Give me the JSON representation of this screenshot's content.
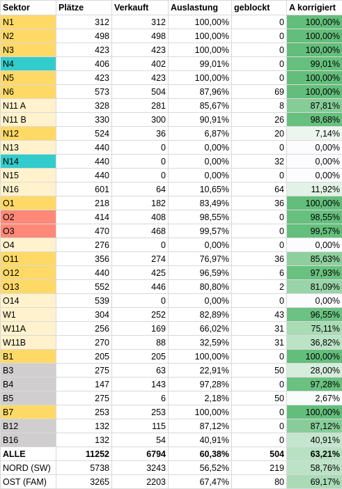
{
  "headers": [
    "Sektor",
    "Plätze",
    "Verkauft",
    "Auslastung",
    "geblockt",
    "A korrigiert"
  ],
  "rows": [
    {
      "name": "N1",
      "plaetze": "312",
      "verkauft": "312",
      "auslastung": "100,00%",
      "geblockt": "0",
      "korrigiert": "100,00%",
      "name_color": "#FFD966",
      "corr_color": "#63BE7B"
    },
    {
      "name": "N2",
      "plaetze": "498",
      "verkauft": "498",
      "auslastung": "100,00%",
      "geblockt": "0",
      "korrigiert": "100,00%",
      "name_color": "#FFD966",
      "corr_color": "#63BE7B"
    },
    {
      "name": "N3",
      "plaetze": "423",
      "verkauft": "423",
      "auslastung": "100,00%",
      "geblockt": "0",
      "korrigiert": "100,00%",
      "name_color": "#FFD966",
      "corr_color": "#63BE7B"
    },
    {
      "name": "N4",
      "plaetze": "406",
      "verkauft": "402",
      "auslastung": "99,01%",
      "geblockt": "0",
      "korrigiert": "99,01%",
      "name_color": "#33CCCC",
      "corr_color": "#66BF7D"
    },
    {
      "name": "N5",
      "plaetze": "423",
      "verkauft": "423",
      "auslastung": "100,00%",
      "geblockt": "0",
      "korrigiert": "100,00%",
      "name_color": "#FFD966",
      "corr_color": "#63BE7B"
    },
    {
      "name": "N6",
      "plaetze": "573",
      "verkauft": "504",
      "auslastung": "87,96%",
      "geblockt": "69",
      "korrigiert": "100,00%",
      "name_color": "#FFD966",
      "corr_color": "#63BE7B"
    },
    {
      "name": "N11 A",
      "plaetze": "328",
      "verkauft": "281",
      "auslastung": "85,67%",
      "geblockt": "8",
      "korrigiert": "87,81%",
      "name_color": "#FFF2CC",
      "corr_color": "#86CC97"
    },
    {
      "name": "N11 B",
      "plaetze": "330",
      "verkauft": "300",
      "auslastung": "90,91%",
      "geblockt": "26",
      "korrigiert": "98,68%",
      "name_color": "#FFF2CC",
      "corr_color": "#67C07E"
    },
    {
      "name": "N12",
      "plaetze": "524",
      "verkauft": "36",
      "auslastung": "6,87%",
      "geblockt": "20",
      "korrigiert": "7,14%",
      "name_color": "#FFD966",
      "corr_color": "#ECF6EF"
    },
    {
      "name": "N13",
      "plaetze": "440",
      "verkauft": "0",
      "auslastung": "0,00%",
      "geblockt": "0",
      "korrigiert": "0,00%",
      "name_color": "#FFF2CC",
      "corr_color": "#FCFCFF"
    },
    {
      "name": "N14",
      "plaetze": "440",
      "verkauft": "0",
      "auslastung": "0,00%",
      "geblockt": "32",
      "korrigiert": "0,00%",
      "name_color": "#33CCCC",
      "corr_color": "#FCFCFF"
    },
    {
      "name": "N15",
      "plaetze": "440",
      "verkauft": "0",
      "auslastung": "0,00%",
      "geblockt": "0",
      "korrigiert": "0,00%",
      "name_color": "#FFF2CC",
      "corr_color": "#FCFCFF"
    },
    {
      "name": "N16",
      "plaetze": "601",
      "verkauft": "64",
      "auslastung": "10,65%",
      "geblockt": "64",
      "korrigiert": "11,92%",
      "name_color": "#FFF2CC",
      "corr_color": "#E2F2E6"
    },
    {
      "name": "O1",
      "plaetze": "218",
      "verkauft": "182",
      "auslastung": "83,49%",
      "geblockt": "36",
      "korrigiert": "100,00%",
      "name_color": "#FFD966",
      "corr_color": "#63BE7B"
    },
    {
      "name": "O2",
      "plaetze": "414",
      "verkauft": "408",
      "auslastung": "98,55%",
      "geblockt": "0",
      "korrigiert": "98,55%",
      "name_color": "#FF8878",
      "corr_color": "#67C07E"
    },
    {
      "name": "O3",
      "plaetze": "470",
      "verkauft": "468",
      "auslastung": "99,57%",
      "geblockt": "0",
      "korrigiert": "99,57%",
      "name_color": "#FF8878",
      "corr_color": "#64BF7C"
    },
    {
      "name": "O4",
      "plaetze": "276",
      "verkauft": "0",
      "auslastung": "0,00%",
      "geblockt": "0",
      "korrigiert": "0,00%",
      "name_color": "#FFF2CC",
      "corr_color": "#FCFCFF"
    },
    {
      "name": "O11",
      "plaetze": "356",
      "verkauft": "274",
      "auslastung": "76,97%",
      "geblockt": "36",
      "korrigiert": "85,63%",
      "name_color": "#FFD966",
      "corr_color": "#8DCF9D"
    },
    {
      "name": "O12",
      "plaetze": "440",
      "verkauft": "425",
      "auslastung": "96,59%",
      "geblockt": "6",
      "korrigiert": "97,93%",
      "name_color": "#FFD966",
      "corr_color": "#69C17F"
    },
    {
      "name": "O13",
      "plaetze": "552",
      "verkauft": "446",
      "auslastung": "80,80%",
      "geblockt": "2",
      "korrigiert": "81,09%",
      "name_color": "#FFD966",
      "corr_color": "#98D4A7"
    },
    {
      "name": "O14",
      "plaetze": "539",
      "verkauft": "0",
      "auslastung": "0,00%",
      "geblockt": "0",
      "korrigiert": "0,00%",
      "name_color": "#FFF2CC",
      "corr_color": "#FCFCFF"
    },
    {
      "name": "W1",
      "plaetze": "304",
      "verkauft": "252",
      "auslastung": "82,89%",
      "geblockt": "43",
      "korrigiert": "96,55%",
      "name_color": "#FFF2CC",
      "corr_color": "#6CC282"
    },
    {
      "name": "W11A",
      "plaetze": "256",
      "verkauft": "169",
      "auslastung": "66,02%",
      "geblockt": "31",
      "korrigiert": "75,11%",
      "name_color": "#FFF2CC",
      "corr_color": "#A9DBB5"
    },
    {
      "name": "W11B",
      "plaetze": "270",
      "verkauft": "88",
      "auslastung": "32,59%",
      "geblockt": "31",
      "korrigiert": "36,82%",
      "name_color": "#FFF2CC",
      "corr_color": "#BCE3C6"
    },
    {
      "name": "B1",
      "plaetze": "205",
      "verkauft": "205",
      "auslastung": "100,00%",
      "geblockt": "0",
      "korrigiert": "100,00%",
      "name_color": "#FFD966",
      "corr_color": "#63BE7B"
    },
    {
      "name": "B3",
      "plaetze": "275",
      "verkauft": "63",
      "auslastung": "22,91%",
      "geblockt": "50",
      "korrigiert": "28,00%",
      "name_color": "#D0CECE",
      "corr_color": "#D6EDDC"
    },
    {
      "name": "B4",
      "plaetze": "147",
      "verkauft": "143",
      "auslastung": "97,28%",
      "geblockt": "0",
      "korrigiert": "97,28%",
      "name_color": "#D0CECE",
      "corr_color": "#6AC180"
    },
    {
      "name": "B5",
      "plaetze": "275",
      "verkauft": "6",
      "auslastung": "2,18%",
      "geblockt": "50",
      "korrigiert": "2,67%",
      "name_color": "#D0CECE",
      "corr_color": "#F7FBF9"
    },
    {
      "name": "B7",
      "plaetze": "253",
      "verkauft": "253",
      "auslastung": "100,00%",
      "geblockt": "0",
      "korrigiert": "100,00%",
      "name_color": "#FFD966",
      "corr_color": "#63BE7B"
    },
    {
      "name": "B12",
      "plaetze": "132",
      "verkauft": "115",
      "auslastung": "87,12%",
      "geblockt": "0",
      "korrigiert": "87,12%",
      "name_color": "#D0CECE",
      "corr_color": "#88CD99"
    },
    {
      "name": "B16",
      "plaetze": "132",
      "verkauft": "54",
      "auslastung": "40,91%",
      "geblockt": "0",
      "korrigiert": "40,91%",
      "name_color": "#D0CECE",
      "corr_color": "#C5E6CE"
    }
  ],
  "summary": [
    {
      "name": "ALLE",
      "plaetze": "11252",
      "verkauft": "6794",
      "auslastung": "60,38%",
      "geblockt": "504",
      "korrigiert": "63,21%",
      "bold": true,
      "corr_color": "#B7E1C2"
    },
    {
      "name": "NORD (SW)",
      "plaetze": "5738",
      "verkauft": "3243",
      "auslastung": "56,52%",
      "geblockt": "219",
      "korrigiert": "58,76%",
      "bold": false,
      "corr_color": "#BDE3C7"
    },
    {
      "name": "OST (FAM)",
      "plaetze": "3265",
      "verkauft": "2203",
      "auslastung": "67,47%",
      "geblockt": "80",
      "korrigiert": "69,17%",
      "bold": false,
      "corr_color": "#AADBB6"
    }
  ]
}
